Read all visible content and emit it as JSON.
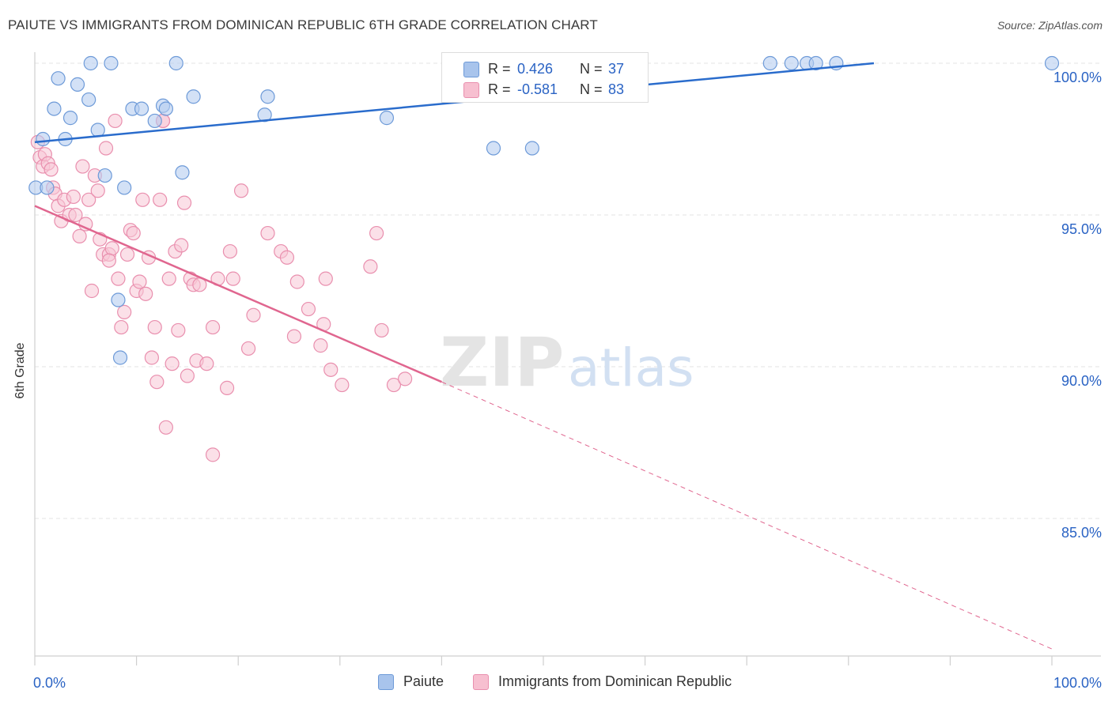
{
  "header": {
    "title": "PAIUTE VS IMMIGRANTS FROM DOMINICAN REPUBLIC 6TH GRADE CORRELATION CHART",
    "source": "Source: ZipAtlas.com"
  },
  "watermark": {
    "zip": "ZIP",
    "atlas": "atlas"
  },
  "legend_top": {
    "rows": [
      {
        "r_label": "R =",
        "r_value": "0.426",
        "n_label": "N =",
        "n_value": "37",
        "color": "#a8c4ec",
        "stroke": "#6d9ad8"
      },
      {
        "r_label": "R =",
        "r_value": "-0.581",
        "n_label": "N =",
        "n_value": "83",
        "color": "#f7bfd0",
        "stroke": "#e98fae"
      }
    ]
  },
  "colors": {
    "blue_fill": "#b5cdf0",
    "blue_stroke": "#6d9ad8",
    "blue_line": "#2a6ccc",
    "pink_fill": "#f8c6d6",
    "pink_stroke": "#e98fae",
    "pink_line": "#e0668f",
    "tick_label": "#2a63c4",
    "grid": "#e3e3e3"
  },
  "chart_data": {
    "type": "scatter",
    "ylabel": "6th Grade",
    "x_tick_labels": [
      "0.0%",
      "100.0%"
    ],
    "y_tick_labels": [
      "100.0%",
      "95.0%",
      "90.0%",
      "85.0%"
    ],
    "y_ticks": [
      100,
      95,
      90,
      85
    ],
    "xlim": [
      0,
      100
    ],
    "ylim": [
      80.5,
      100.8
    ],
    "grid": true,
    "legend_position": "top-center",
    "series": [
      {
        "name": "Paiute",
        "trend": {
          "x": [
            0,
            82.5
          ],
          "y": [
            97.4,
            100
          ]
        },
        "points": [
          [
            0.1,
            95.9
          ],
          [
            0.8,
            97.5
          ],
          [
            1.2,
            95.9
          ],
          [
            1.9,
            98.5
          ],
          [
            2.3,
            99.5
          ],
          [
            3.0,
            97.5
          ],
          [
            3.5,
            98.2
          ],
          [
            4.2,
            99.3
          ],
          [
            5.3,
            98.8
          ],
          [
            5.5,
            100
          ],
          [
            6.2,
            97.8
          ],
          [
            6.9,
            96.3
          ],
          [
            7.5,
            100
          ],
          [
            8.2,
            92.2
          ],
          [
            8.4,
            90.3
          ],
          [
            8.8,
            95.9
          ],
          [
            9.6,
            98.5
          ],
          [
            10.5,
            98.5
          ],
          [
            11.8,
            98.1
          ],
          [
            12.6,
            98.6
          ],
          [
            12.9,
            98.5
          ],
          [
            13.9,
            100
          ],
          [
            14.5,
            96.4
          ],
          [
            15.6,
            98.9
          ],
          [
            22.6,
            98.3
          ],
          [
            22.9,
            98.9
          ],
          [
            34.6,
            98.2
          ],
          [
            45.1,
            97.2
          ],
          [
            46.0,
            100
          ],
          [
            46.8,
            100
          ],
          [
            48.9,
            97.2
          ],
          [
            72.3,
            100
          ],
          [
            74.4,
            100
          ],
          [
            75.9,
            100
          ],
          [
            76.8,
            100
          ],
          [
            78.8,
            100
          ],
          [
            100,
            100
          ]
        ]
      },
      {
        "name": "Immigrants from Dominican Republic",
        "trend": {
          "x": [
            0,
            40
          ],
          "y": [
            95.3,
            89.5
          ]
        },
        "trend_ext": {
          "x": [
            40,
            100
          ],
          "y": [
            89.5,
            80.7
          ]
        },
        "points": [
          [
            0.3,
            97.4
          ],
          [
            0.5,
            96.9
          ],
          [
            0.8,
            96.6
          ],
          [
            1.0,
            97.0
          ],
          [
            1.3,
            96.7
          ],
          [
            1.6,
            96.5
          ],
          [
            1.8,
            95.9
          ],
          [
            2.0,
            95.7
          ],
          [
            2.3,
            95.3
          ],
          [
            2.6,
            94.8
          ],
          [
            2.9,
            95.5
          ],
          [
            3.4,
            95.0
          ],
          [
            3.8,
            95.6
          ],
          [
            4.0,
            95.0
          ],
          [
            4.4,
            94.3
          ],
          [
            4.7,
            96.6
          ],
          [
            5.0,
            94.7
          ],
          [
            5.3,
            95.5
          ],
          [
            5.6,
            92.5
          ],
          [
            5.9,
            96.3
          ],
          [
            6.2,
            95.8
          ],
          [
            6.4,
            94.2
          ],
          [
            6.7,
            93.7
          ],
          [
            7.0,
            97.2
          ],
          [
            7.3,
            93.7
          ],
          [
            7.6,
            93.9
          ],
          [
            7.9,
            98.1
          ],
          [
            8.2,
            92.9
          ],
          [
            8.5,
            91.3
          ],
          [
            8.8,
            91.8
          ],
          [
            9.1,
            93.7
          ],
          [
            9.4,
            94.5
          ],
          [
            9.7,
            94.4
          ],
          [
            10.0,
            92.5
          ],
          [
            10.3,
            92.8
          ],
          [
            10.6,
            95.5
          ],
          [
            10.9,
            92.4
          ],
          [
            11.2,
            93.6
          ],
          [
            11.5,
            90.3
          ],
          [
            11.8,
            91.3
          ],
          [
            12.0,
            89.5
          ],
          [
            12.3,
            95.5
          ],
          [
            12.6,
            98.1
          ],
          [
            12.9,
            88.0
          ],
          [
            13.2,
            92.9
          ],
          [
            13.5,
            90.1
          ],
          [
            13.8,
            93.8
          ],
          [
            14.1,
            91.2
          ],
          [
            14.4,
            94.0
          ],
          [
            14.7,
            95.4
          ],
          [
            15.0,
            89.7
          ],
          [
            15.3,
            92.9
          ],
          [
            15.6,
            92.7
          ],
          [
            15.9,
            90.2
          ],
          [
            16.2,
            92.7
          ],
          [
            16.9,
            90.1
          ],
          [
            17.5,
            91.3
          ],
          [
            17.5,
            87.1
          ],
          [
            18.0,
            92.9
          ],
          [
            18.9,
            89.3
          ],
          [
            19.2,
            93.8
          ],
          [
            19.5,
            92.9
          ],
          [
            20.3,
            95.8
          ],
          [
            21.0,
            90.6
          ],
          [
            21.5,
            91.7
          ],
          [
            22.9,
            94.4
          ],
          [
            24.2,
            93.8
          ],
          [
            24.8,
            93.6
          ],
          [
            25.5,
            91.0
          ],
          [
            25.8,
            92.8
          ],
          [
            26.9,
            91.9
          ],
          [
            28.1,
            90.7
          ],
          [
            28.4,
            91.4
          ],
          [
            28.6,
            92.9
          ],
          [
            29.1,
            89.9
          ],
          [
            30.2,
            89.4
          ],
          [
            33.0,
            93.3
          ],
          [
            33.6,
            94.4
          ],
          [
            34.1,
            91.2
          ],
          [
            35.3,
            89.4
          ],
          [
            36.4,
            89.6
          ],
          [
            12.6,
            98.1
          ],
          [
            7.3,
            93.5
          ]
        ]
      }
    ]
  }
}
